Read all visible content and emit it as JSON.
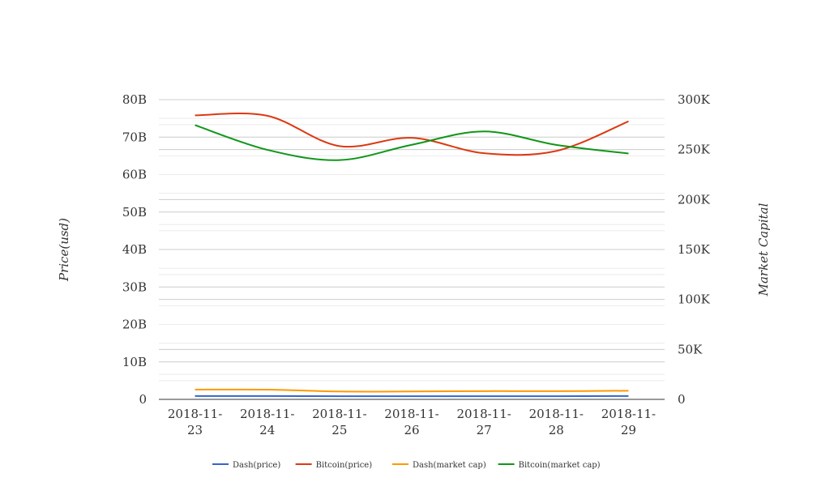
{
  "chart_data": {
    "type": "line",
    "categories": [
      "2018-11-23",
      "2018-11-24",
      "2018-11-25",
      "2018-11-26",
      "2018-11-27",
      "2018-11-28",
      "2018-11-29"
    ],
    "category_lines": [
      [
        "2018-11-",
        "23"
      ],
      [
        "2018-11-",
        "24"
      ],
      [
        "2018-11-",
        "25"
      ],
      [
        "2018-11-",
        "26"
      ],
      [
        "2018-11-",
        "27"
      ],
      [
        "2018-11-",
        "28"
      ],
      [
        "2018-11-",
        "29"
      ]
    ],
    "y_left": {
      "label": "Price(usd)",
      "range": [
        0,
        80000000000
      ],
      "ticks": [
        0,
        10000000000,
        20000000000,
        30000000000,
        40000000000,
        50000000000,
        60000000000,
        70000000000,
        80000000000
      ],
      "tick_labels": [
        "0",
        "10B",
        "20B",
        "30B",
        "40B",
        "50B",
        "60B",
        "70B",
        "80B"
      ]
    },
    "y_right": {
      "label": "Market Capital",
      "range": [
        0,
        300000
      ],
      "ticks": [
        0,
        50000,
        100000,
        150000,
        200000,
        250000,
        300000
      ],
      "tick_labels": [
        "0",
        "50K",
        "100K",
        "150K",
        "200K",
        "250K",
        "300K"
      ]
    },
    "grid": true,
    "legend_position": "bottom",
    "series": [
      {
        "name": "Dash(price)",
        "axis": "left",
        "color": "#3366cc",
        "values": [
          900000000,
          900000000,
          850000000,
          850000000,
          850000000,
          850000000,
          900000000
        ]
      },
      {
        "name": "Bitcoin(price)",
        "axis": "left",
        "color": "#dc3912",
        "values": [
          75800000000,
          75700000000,
          67600000000,
          69800000000,
          65700000000,
          66300000000,
          74200000000
        ]
      },
      {
        "name": "Dash(market cap)",
        "axis": "left",
        "color": "#ff9900",
        "values": [
          2600000000,
          2600000000,
          2100000000,
          2100000000,
          2200000000,
          2200000000,
          2300000000
        ]
      },
      {
        "name": "Bitcoin(market cap)",
        "axis": "right",
        "color": "#109618",
        "values": [
          274500,
          249800,
          239500,
          254800,
          268200,
          254700,
          246100
        ]
      }
    ]
  }
}
